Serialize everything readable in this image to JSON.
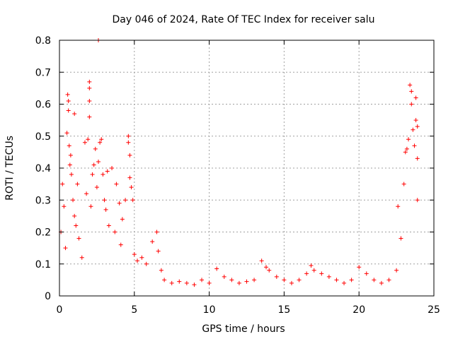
{
  "chart_data": {
    "type": "scatter",
    "title": "Day 046 of 2024, Rate Of TEC Index for receiver salu",
    "xlabel": "GPS time / hours",
    "ylabel": "ROTI / TECUs",
    "xlim": [
      0,
      25
    ],
    "ylim": [
      0,
      0.8
    ],
    "xticks": [
      0,
      5,
      10,
      15,
      20,
      25
    ],
    "yticks": [
      0,
      0.1,
      0.2,
      0.3,
      0.4,
      0.5,
      0.6,
      0.7,
      0.8
    ],
    "xtick_labels": [
      "0",
      "5",
      "10",
      "15",
      "20",
      "25"
    ],
    "ytick_labels": [
      "0",
      "0.1",
      "0.2",
      "0.3",
      "0.4",
      "0.5",
      "0.6",
      "0.7",
      "0.8"
    ],
    "grid": true,
    "marker": "+",
    "marker_color": "#ff0000",
    "series": [
      {
        "name": "ROTI",
        "points": [
          [
            0.1,
            0.2
          ],
          [
            0.2,
            0.35
          ],
          [
            0.3,
            0.28
          ],
          [
            0.4,
            0.15
          ],
          [
            0.5,
            0.51
          ],
          [
            0.55,
            0.63
          ],
          [
            0.6,
            0.58
          ],
          [
            0.6,
            0.61
          ],
          [
            0.65,
            0.47
          ],
          [
            0.7,
            0.41
          ],
          [
            0.75,
            0.44
          ],
          [
            0.8,
            0.38
          ],
          [
            0.9,
            0.3
          ],
          [
            1.0,
            0.57
          ],
          [
            1.0,
            0.25
          ],
          [
            1.1,
            0.22
          ],
          [
            1.2,
            0.35
          ],
          [
            1.3,
            0.18
          ],
          [
            1.5,
            0.12
          ],
          [
            1.7,
            0.48
          ],
          [
            1.8,
            0.32
          ],
          [
            1.9,
            0.49
          ],
          [
            2.0,
            0.56
          ],
          [
            2.0,
            0.61
          ],
          [
            2.0,
            0.65
          ],
          [
            2.0,
            0.67
          ],
          [
            2.1,
            0.28
          ],
          [
            2.2,
            0.38
          ],
          [
            2.3,
            0.41
          ],
          [
            2.4,
            0.46
          ],
          [
            2.5,
            0.34
          ],
          [
            2.6,
            0.8
          ],
          [
            2.6,
            0.42
          ],
          [
            2.7,
            0.48
          ],
          [
            2.8,
            0.49
          ],
          [
            2.9,
            0.38
          ],
          [
            3.0,
            0.3
          ],
          [
            3.1,
            0.27
          ],
          [
            3.2,
            0.39
          ],
          [
            3.3,
            0.22
          ],
          [
            3.5,
            0.4
          ],
          [
            3.7,
            0.2
          ],
          [
            3.8,
            0.35
          ],
          [
            4.0,
            0.29
          ],
          [
            4.1,
            0.16
          ],
          [
            4.2,
            0.24
          ],
          [
            4.4,
            0.3
          ],
          [
            4.6,
            0.5
          ],
          [
            4.6,
            0.48
          ],
          [
            4.7,
            0.44
          ],
          [
            4.7,
            0.37
          ],
          [
            4.8,
            0.34
          ],
          [
            4.9,
            0.3
          ],
          [
            5.0,
            0.13
          ],
          [
            5.2,
            0.11
          ],
          [
            5.5,
            0.12
          ],
          [
            5.8,
            0.1
          ],
          [
            6.2,
            0.17
          ],
          [
            6.5,
            0.2
          ],
          [
            6.6,
            0.14
          ],
          [
            6.8,
            0.08
          ],
          [
            7.0,
            0.05
          ],
          [
            7.5,
            0.04
          ],
          [
            8.0,
            0.045
          ],
          [
            8.5,
            0.04
          ],
          [
            9.0,
            0.035
          ],
          [
            9.5,
            0.05
          ],
          [
            10.0,
            0.04
          ],
          [
            10.5,
            0.085
          ],
          [
            11.0,
            0.06
          ],
          [
            11.5,
            0.05
          ],
          [
            12.0,
            0.04
          ],
          [
            12.5,
            0.045
          ],
          [
            13.0,
            0.05
          ],
          [
            13.5,
            0.11
          ],
          [
            13.8,
            0.09
          ],
          [
            14.0,
            0.08
          ],
          [
            14.5,
            0.06
          ],
          [
            15.0,
            0.05
          ],
          [
            15.5,
            0.04
          ],
          [
            16.0,
            0.05
          ],
          [
            16.5,
            0.07
          ],
          [
            16.8,
            0.095
          ],
          [
            17.0,
            0.08
          ],
          [
            17.5,
            0.07
          ],
          [
            18.0,
            0.06
          ],
          [
            18.5,
            0.05
          ],
          [
            19.0,
            0.04
          ],
          [
            19.5,
            0.05
          ],
          [
            20.0,
            0.09
          ],
          [
            20.5,
            0.07
          ],
          [
            21.0,
            0.05
          ],
          [
            21.5,
            0.04
          ],
          [
            22.0,
            0.05
          ],
          [
            22.5,
            0.08
          ],
          [
            22.6,
            0.28
          ],
          [
            22.8,
            0.18
          ],
          [
            23.0,
            0.35
          ],
          [
            23.1,
            0.45
          ],
          [
            23.2,
            0.46
          ],
          [
            23.3,
            0.49
          ],
          [
            23.4,
            0.66
          ],
          [
            23.5,
            0.64
          ],
          [
            23.5,
            0.6
          ],
          [
            23.6,
            0.52
          ],
          [
            23.7,
            0.47
          ],
          [
            23.8,
            0.62
          ],
          [
            23.8,
            0.55
          ],
          [
            23.9,
            0.53
          ],
          [
            23.9,
            0.43
          ],
          [
            23.9,
            0.3
          ]
        ]
      }
    ]
  }
}
